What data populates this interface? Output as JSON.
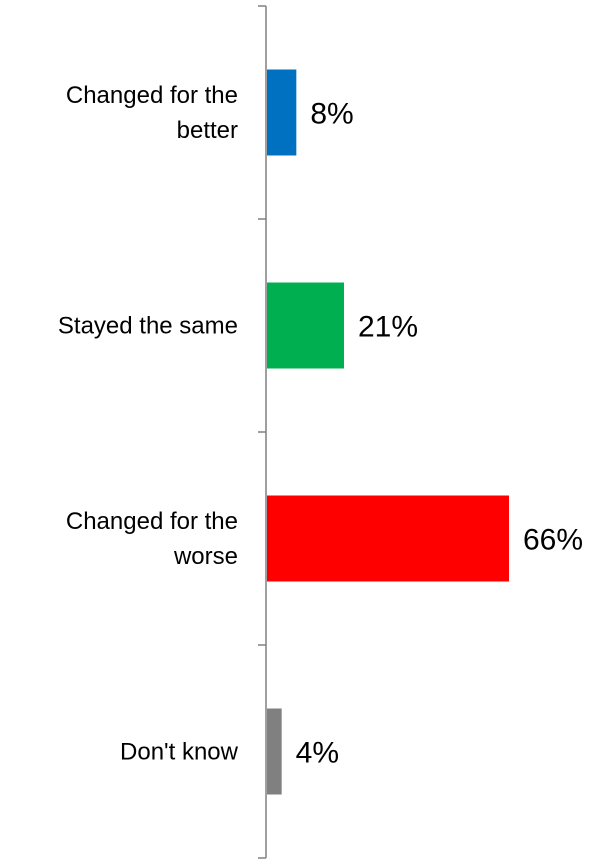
{
  "chart_data": {
    "type": "bar",
    "orientation": "horizontal",
    "categories": [
      [
        "Changed for the",
        "better"
      ],
      [
        "Stayed the same"
      ],
      [
        "Changed for the",
        "worse"
      ],
      [
        "Don't know"
      ]
    ],
    "values": [
      8,
      21,
      66,
      4
    ],
    "value_labels": [
      "8%",
      "21%",
      "66%",
      "4%"
    ],
    "colors": [
      "#0070C0",
      "#00B050",
      "#FF0000",
      "#808080"
    ],
    "axis_color": "#808080",
    "xlim": [
      0,
      80
    ],
    "grid": false,
    "legend": "none"
  }
}
